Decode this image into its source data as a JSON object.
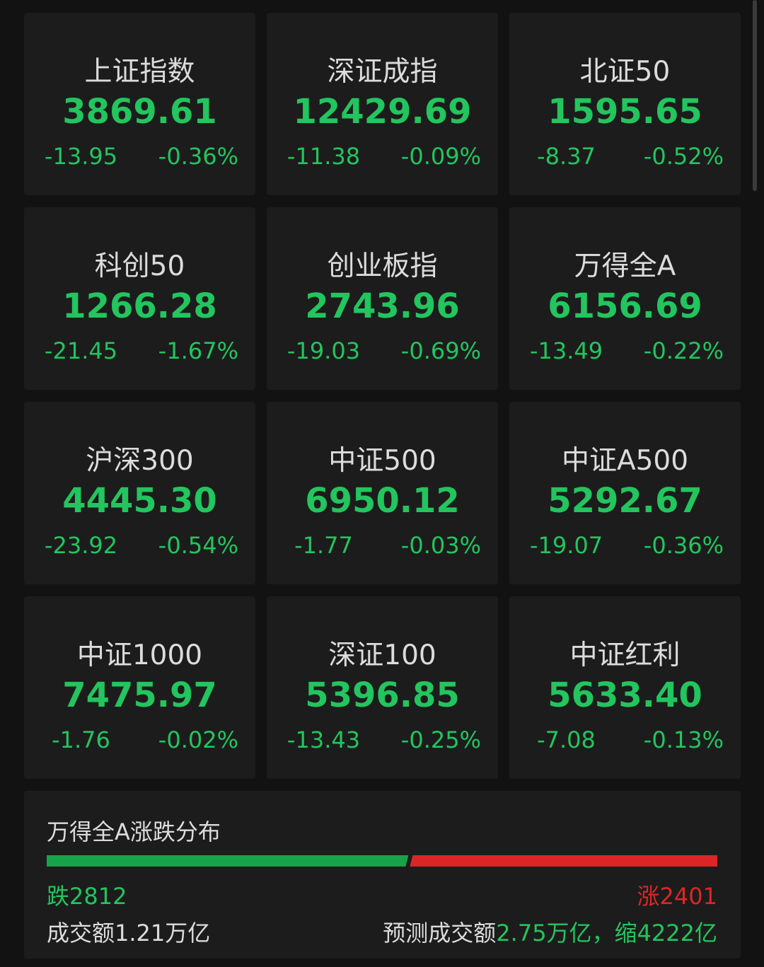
{
  "indices": [
    {
      "name": "上证指数",
      "value": "3869.61",
      "change": "-13.95",
      "pct": "-0.36%"
    },
    {
      "name": "深证成指",
      "value": "12429.69",
      "change": "-11.38",
      "pct": "-0.09%"
    },
    {
      "name": "北证50",
      "value": "1595.65",
      "change": "-8.37",
      "pct": "-0.52%"
    },
    {
      "name": "科创50",
      "value": "1266.28",
      "change": "-21.45",
      "pct": "-1.67%"
    },
    {
      "name": "创业板指",
      "value": "2743.96",
      "change": "-19.03",
      "pct": "-0.69%"
    },
    {
      "name": "万得全A",
      "value": "6156.69",
      "change": "-13.49",
      "pct": "-0.22%"
    },
    {
      "name": "沪深300",
      "value": "4445.30",
      "change": "-23.92",
      "pct": "-0.54%"
    },
    {
      "name": "中证500",
      "value": "6950.12",
      "change": "-1.77",
      "pct": "-0.03%"
    },
    {
      "name": "中证A500",
      "value": "5292.67",
      "change": "-19.07",
      "pct": "-0.36%"
    },
    {
      "name": "中证1000",
      "value": "7475.97",
      "change": "-1.76",
      "pct": "-0.02%"
    },
    {
      "name": "深证100",
      "value": "5396.85",
      "change": "-13.43",
      "pct": "-0.25%"
    },
    {
      "name": "中证红利",
      "value": "5633.40",
      "change": "-7.08",
      "pct": "-0.13%"
    }
  ],
  "distribution": {
    "title": "万得全A涨跌分布",
    "down_label": "跌2812",
    "up_label": "涨2401",
    "down_count": 2812,
    "up_count": 2401,
    "volume": "成交额1.21万亿",
    "forecast_label": "预测成交额",
    "forecast_value": "2.75万亿，缩4222亿"
  },
  "colors": {
    "down": "#22c55e",
    "up": "#dc2626",
    "background": "#121212",
    "card": "#1c1c1c"
  }
}
